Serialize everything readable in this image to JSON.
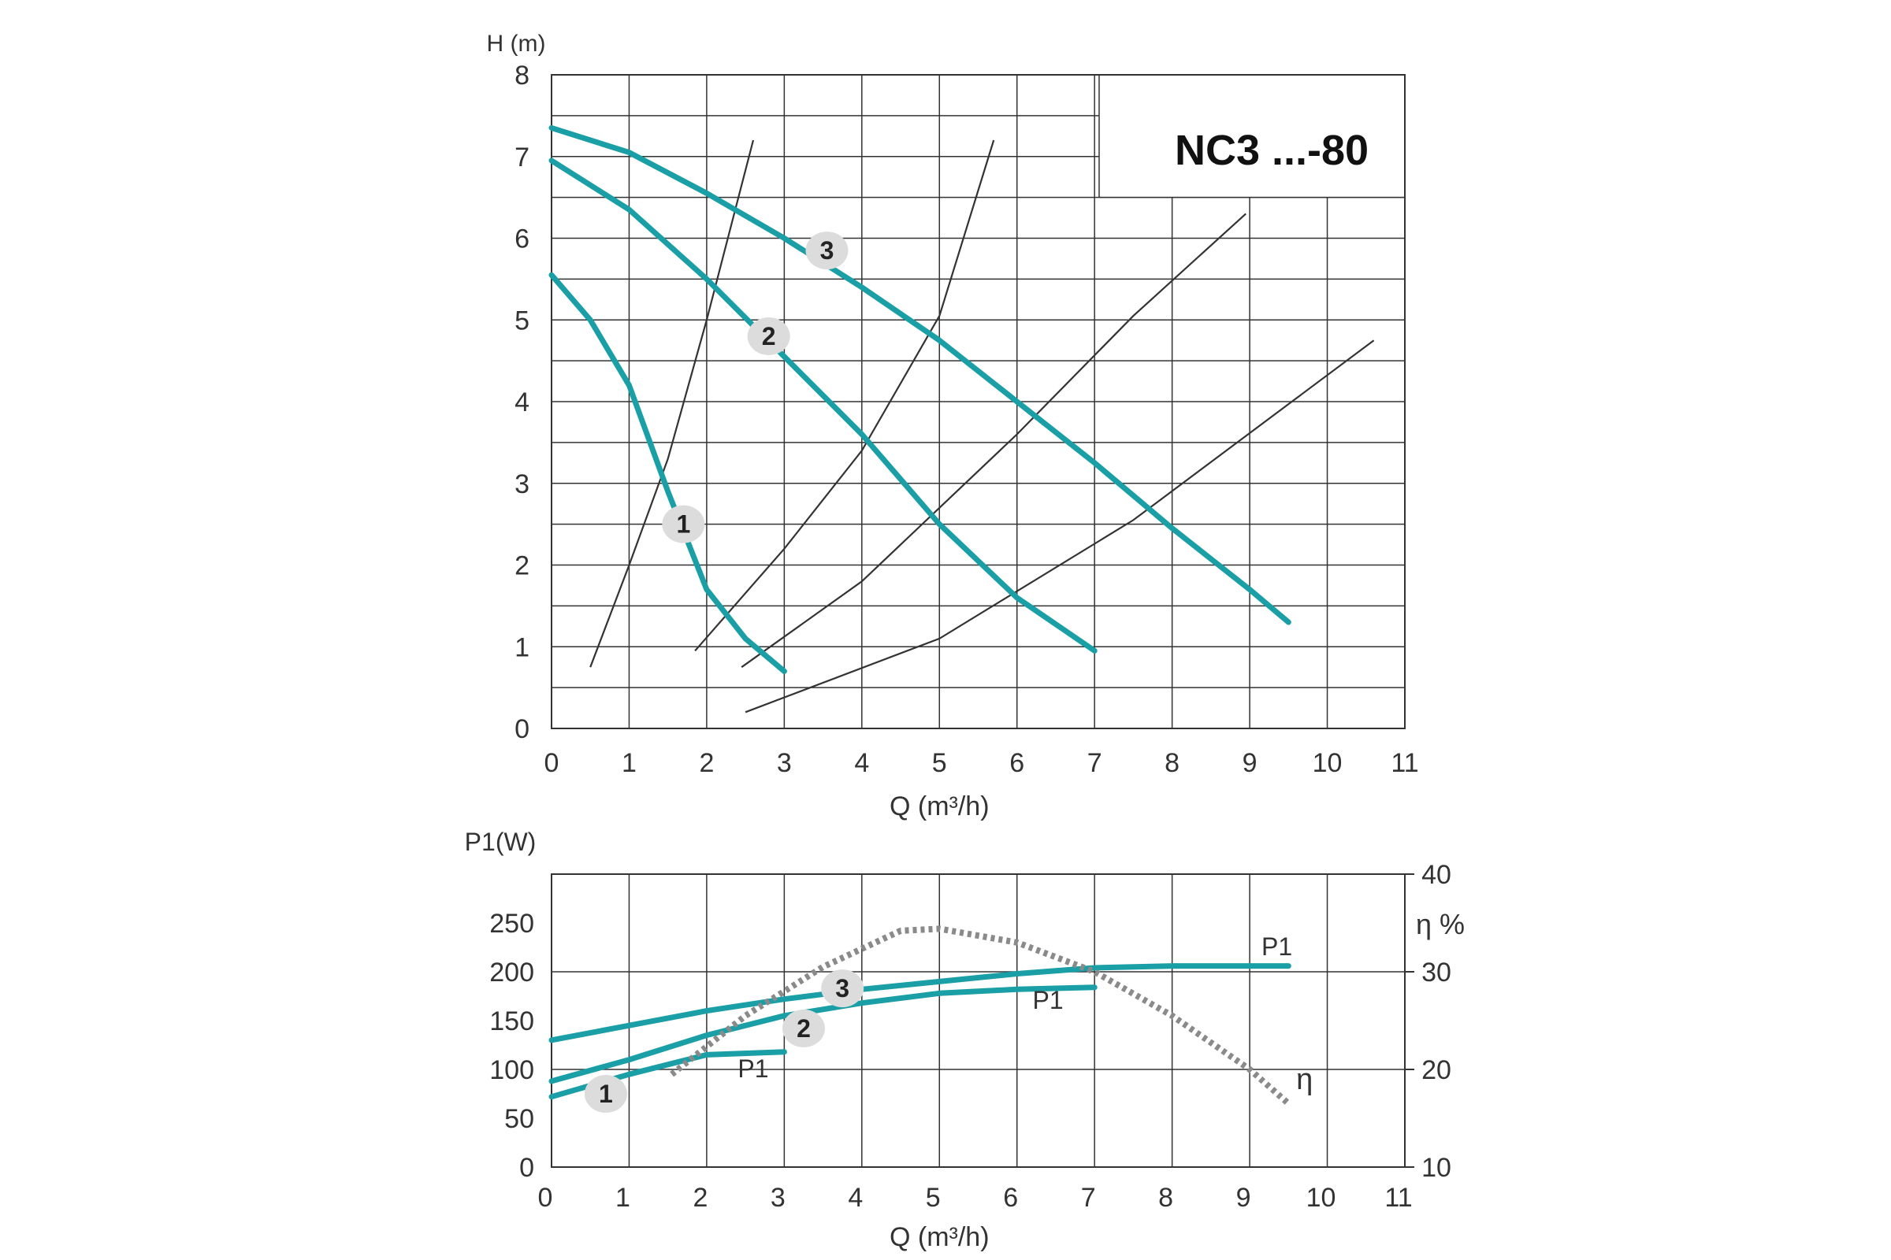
{
  "colors": {
    "pump_curve": "#1a9fa6",
    "system_curve": "#333333",
    "efficiency_curve": "#8a8a8a",
    "grid": "#333333",
    "badge_fill": "#dcdcdc"
  },
  "chart_data": [
    {
      "type": "line",
      "title": "NC3 ...-80",
      "xlabel": "Q (m³/h)",
      "ylabel": "H (m)",
      "xlim": [
        0,
        11
      ],
      "ylim": [
        0,
        8
      ],
      "x_ticks": [
        "0",
        "1",
        "2",
        "3",
        "4",
        "5",
        "6",
        "7",
        "8",
        "9",
        "10",
        "11"
      ],
      "y_ticks": [
        "0",
        "1",
        "2",
        "3",
        "4",
        "5",
        "6",
        "7",
        "8"
      ],
      "grid": true,
      "series": [
        {
          "name": "1",
          "role": "pump",
          "label_at": [
            1.7,
            2.5
          ],
          "points": [
            [
              0,
              5.55
            ],
            [
              0.5,
              5.0
            ],
            [
              1.0,
              4.2
            ],
            [
              1.5,
              2.9
            ],
            [
              2.0,
              1.7
            ],
            [
              2.5,
              1.1
            ],
            [
              3.0,
              0.7
            ]
          ]
        },
        {
          "name": "2",
          "role": "pump",
          "label_at": [
            2.8,
            4.8
          ],
          "points": [
            [
              0,
              6.95
            ],
            [
              1.0,
              6.35
            ],
            [
              2.0,
              5.5
            ],
            [
              3.0,
              4.55
            ],
            [
              4.0,
              3.6
            ],
            [
              5.0,
              2.5
            ],
            [
              6.0,
              1.6
            ],
            [
              7.0,
              0.95
            ]
          ]
        },
        {
          "name": "3",
          "role": "pump",
          "label_at": [
            3.55,
            5.85
          ],
          "points": [
            [
              0,
              7.35
            ],
            [
              1.0,
              7.05
            ],
            [
              2.0,
              6.55
            ],
            [
              3.0,
              6.0
            ],
            [
              4.0,
              5.4
            ],
            [
              5.0,
              4.75
            ],
            [
              6.0,
              4.0
            ],
            [
              7.0,
              3.25
            ],
            [
              8.0,
              2.45
            ],
            [
              9.0,
              1.7
            ],
            [
              9.5,
              1.3
            ]
          ]
        },
        {
          "role": "system",
          "points": [
            [
              0.5,
              0.75
            ],
            [
              1.0,
              2.0
            ],
            [
              1.5,
              3.3
            ],
            [
              2.0,
              5.0
            ],
            [
              2.6,
              7.2
            ]
          ]
        },
        {
          "role": "system",
          "points": [
            [
              1.85,
              0.95
            ],
            [
              3.0,
              2.2
            ],
            [
              4.0,
              3.4
            ],
            [
              5.0,
              5.05
            ],
            [
              5.7,
              7.2
            ]
          ]
        },
        {
          "role": "system",
          "points": [
            [
              2.45,
              0.75
            ],
            [
              4.0,
              1.8
            ],
            [
              6.0,
              3.6
            ],
            [
              7.5,
              5.05
            ],
            [
              8.95,
              6.3
            ]
          ]
        },
        {
          "role": "system",
          "points": [
            [
              2.5,
              0.2
            ],
            [
              5.0,
              1.1
            ],
            [
              7.5,
              2.55
            ],
            [
              10.6,
              4.75
            ]
          ]
        }
      ]
    },
    {
      "type": "line",
      "xlabel": "Q (m³/h)",
      "ylabel": "P1(W)",
      "y2label": "η %",
      "xlim": [
        0,
        11
      ],
      "ylim": [
        0,
        300
      ],
      "y2lim": [
        10,
        40
      ],
      "x_ticks": [
        "0",
        "1",
        "2",
        "3",
        "4",
        "5",
        "6",
        "7",
        "8",
        "9",
        "10",
        "11"
      ],
      "y_ticks": [
        "0",
        "50",
        "100",
        "150",
        "200",
        "250"
      ],
      "y2_ticks": [
        "10",
        "20",
        "30",
        "40"
      ],
      "grid": true,
      "series": [
        {
          "name": "1",
          "role": "power",
          "label_at": [
            0.7,
            75
          ],
          "end_label": "P1",
          "end_label_at": [
            2.6,
            92
          ],
          "points": [
            [
              0,
              72
            ],
            [
              1.0,
              95
            ],
            [
              2.0,
              115
            ],
            [
              3.0,
              118
            ]
          ]
        },
        {
          "name": "2",
          "role": "power",
          "label_at": [
            3.25,
            142
          ],
          "end_label": "P1",
          "end_label_at": [
            6.4,
            162
          ],
          "points": [
            [
              0,
              88
            ],
            [
              1.0,
              110
            ],
            [
              2.0,
              135
            ],
            [
              3.0,
              155
            ],
            [
              4.0,
              168
            ],
            [
              5.0,
              178
            ],
            [
              6.0,
              182
            ],
            [
              7.0,
              184
            ]
          ]
        },
        {
          "name": "3",
          "role": "power",
          "label_at": [
            3.75,
            183
          ],
          "end_label": "P1",
          "end_label_at": [
            9.35,
            217
          ],
          "points": [
            [
              0,
              130
            ],
            [
              1.0,
              145
            ],
            [
              2.0,
              160
            ],
            [
              3.0,
              172
            ],
            [
              4.0,
              182
            ],
            [
              5.0,
              190
            ],
            [
              6.0,
              198
            ],
            [
              7.0,
              204
            ],
            [
              8.0,
              206
            ],
            [
              9.0,
              206
            ],
            [
              9.5,
              206
            ]
          ]
        },
        {
          "name": "η",
          "role": "efficiency",
          "axis": "right",
          "dotted": true,
          "label_at": [
            9.6,
            18
          ],
          "points": [
            [
              1.55,
              19.5
            ],
            [
              2.5,
              25.5
            ],
            [
              3.5,
              30.5
            ],
            [
              4.5,
              34.2
            ],
            [
              5.0,
              34.4
            ],
            [
              6.0,
              33.0
            ],
            [
              7.0,
              30.0
            ],
            [
              8.0,
              25.5
            ],
            [
              9.0,
              20.0
            ],
            [
              9.5,
              16.5
            ]
          ]
        }
      ]
    }
  ]
}
